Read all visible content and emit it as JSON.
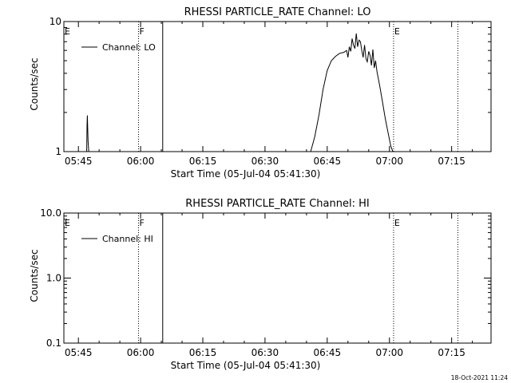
{
  "footer": {
    "timestamp": "18-Oct-2021 11:24"
  },
  "chart_data": [
    {
      "type": "line",
      "title": "RHESSI PARTICLE_RATE Channel: LO",
      "xlabel": "Start Time (05-Jul-04 05:41:30)",
      "ylabel": "Counts/sec",
      "yscale": "log",
      "xlim": [
        "05:41:30",
        "07:24:30"
      ],
      "ylim": [
        1,
        10
      ],
      "xticks": [
        "05:45",
        "06:00",
        "06:15",
        "06:30",
        "06:45",
        "07:00",
        "07:15"
      ],
      "yticks": [
        "1",
        "10"
      ],
      "legend": "top-left",
      "series": [
        {
          "name": "Channel: LO",
          "x": [
            "05:47:00",
            "05:47:05",
            "05:47:10",
            "05:47:20",
            "05:47:30",
            "06:41:00",
            "06:42:00",
            "06:43:00",
            "06:44:00",
            "06:45:00",
            "06:46:00",
            "06:47:00",
            "06:48:00",
            "06:49:00",
            "06:49:40",
            "06:50:00",
            "06:50:20",
            "06:50:40",
            "06:51:00",
            "06:51:20",
            "06:51:40",
            "06:52:00",
            "06:52:20",
            "06:52:40",
            "06:53:00",
            "06:53:20",
            "06:53:40",
            "06:54:00",
            "06:54:20",
            "06:54:40",
            "06:55:00",
            "06:55:20",
            "06:55:40",
            "06:56:00",
            "06:56:20",
            "06:56:40",
            "06:57:00",
            "06:57:40",
            "06:58:20",
            "06:59:00",
            "06:59:40",
            "07:00:20",
            "07:00:50"
          ],
          "y": [
            1.0,
            1.6,
            1.9,
            1.2,
            1.0,
            1.0,
            1.3,
            1.9,
            3.0,
            4.2,
            5.0,
            5.4,
            5.7,
            5.8,
            6.0,
            5.3,
            6.4,
            5.9,
            7.4,
            6.6,
            6.2,
            8.1,
            6.4,
            7.2,
            7.0,
            6.0,
            5.3,
            6.6,
            5.2,
            4.9,
            5.9,
            5.5,
            4.6,
            6.1,
            4.4,
            5.0,
            4.1,
            3.2,
            2.4,
            1.8,
            1.4,
            1.1,
            1.0
          ]
        }
      ],
      "markers": [
        {
          "label": "E",
          "x": "05:41:30",
          "style": "dotted"
        },
        {
          "label": "F",
          "x": "05:59:30",
          "style": "dotted"
        },
        {
          "label": "",
          "x": "06:05:20",
          "style": "solid"
        },
        {
          "label": "E",
          "x": "07:01:00",
          "style": "dotted"
        },
        {
          "label": "",
          "x": "07:16:30",
          "style": "dotted"
        }
      ]
    },
    {
      "type": "line",
      "title": "RHESSI PARTICLE_RATE Channel: HI",
      "xlabel": "Start Time (05-Jul-04 05:41:30)",
      "ylabel": "Counts/sec",
      "yscale": "log",
      "xlim": [
        "05:41:30",
        "07:24:30"
      ],
      "ylim": [
        0.1,
        10
      ],
      "xticks": [
        "05:45",
        "06:00",
        "06:15",
        "06:30",
        "06:45",
        "07:00",
        "07:15"
      ],
      "yticks": [
        "0.1",
        "1.0",
        "10.0"
      ],
      "legend": "top-left",
      "series": [
        {
          "name": "Channel: HI",
          "x": [],
          "y": []
        }
      ],
      "markers": [
        {
          "label": "E",
          "x": "05:41:30",
          "style": "dotted"
        },
        {
          "label": "F",
          "x": "05:59:30",
          "style": "dotted"
        },
        {
          "label": "",
          "x": "06:05:20",
          "style": "solid"
        },
        {
          "label": "E",
          "x": "07:01:00",
          "style": "dotted"
        },
        {
          "label": "",
          "x": "07:16:30",
          "style": "dotted"
        }
      ]
    }
  ]
}
